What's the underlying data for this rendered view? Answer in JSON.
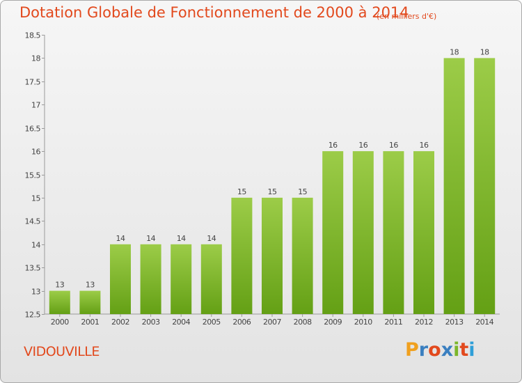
{
  "header": {
    "title": "Dotation Globale de Fonctionnement de 2000 à 2014",
    "subtitle": "(en milliers d'€)"
  },
  "footer": {
    "commune": "VIDOUVILLE",
    "logo": "Proxiti"
  },
  "colors": {
    "title": "#e2491d",
    "bar_light": "#9ccc48",
    "bar_dark": "#64a015",
    "logo_letters": [
      "#f0a01e",
      "#3a7fc0",
      "#e2491d",
      "#3a7fc0",
      "#7bb62b",
      "#e2491d",
      "#2f9fd8"
    ]
  },
  "chart_data": {
    "type": "bar",
    "categories": [
      "2000",
      "2001",
      "2002",
      "2003",
      "2004",
      "2005",
      "2006",
      "2007",
      "2008",
      "2009",
      "2010",
      "2011",
      "2012",
      "2013",
      "2014"
    ],
    "values": [
      13,
      13,
      14,
      14,
      14,
      14,
      15,
      15,
      15,
      16,
      16,
      16,
      16,
      18,
      18
    ],
    "data_labels": [
      "13",
      "13",
      "14",
      "14",
      "14",
      "14",
      "15",
      "15",
      "15",
      "16",
      "16",
      "16",
      "16",
      "18",
      "18"
    ],
    "yticks": [
      "12.5",
      "13",
      "13.5",
      "14",
      "14.5",
      "15",
      "15.5",
      "16",
      "16.5",
      "17",
      "17.5",
      "18",
      "18.5"
    ],
    "ylim": [
      12.5,
      18.5
    ],
    "title": "Dotation Globale de Fonctionnement de 2000 à 2014",
    "xlabel": "",
    "ylabel": "",
    "grid": false,
    "legend": "none"
  }
}
